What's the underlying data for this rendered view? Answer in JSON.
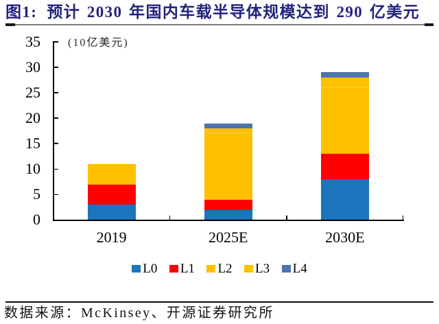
{
  "figure": {
    "title_prefix": "图1:",
    "title": "预计 2030 年国内车载半导体规模达到 290 亿美元",
    "title_color": "#23237E",
    "source_text": "数据来源：McKinsey、开源证券研究所",
    "rule_thin_color": "#7D7D7D",
    "rule_cap_color": "#161616"
  },
  "chart_data": {
    "type": "bar",
    "stacked": true,
    "title": "预计 2030 年国内车载半导体规模达到 290 亿美元",
    "unit_label": "(10亿美元)",
    "xlabel": "",
    "ylabel": "(10亿美元)",
    "categories": [
      "2019",
      "2025E",
      "2030E"
    ],
    "series": [
      {
        "name": "L0",
        "color": "#1B74BC",
        "values": [
          3,
          2,
          8
        ]
      },
      {
        "name": "L1",
        "color": "#FE0000",
        "values": [
          4,
          2,
          5
        ]
      },
      {
        "name": "L2",
        "color": "#FFC000",
        "values": [
          4,
          13,
          13
        ]
      },
      {
        "name": "L3",
        "color": "#FFC000",
        "values": [
          0,
          1,
          2
        ]
      },
      {
        "name": "L4",
        "color": "#4D74AE",
        "values": [
          0,
          1,
          1
        ]
      }
    ],
    "totals": [
      11,
      19,
      29
    ],
    "ylim": [
      0,
      35
    ],
    "yticks": [
      0,
      5,
      10,
      15,
      20,
      25,
      30,
      35
    ],
    "grid": false,
    "legend_position": "bottom",
    "legend_labels": [
      "L0",
      "L1",
      "L2",
      "L3",
      "L4"
    ]
  }
}
